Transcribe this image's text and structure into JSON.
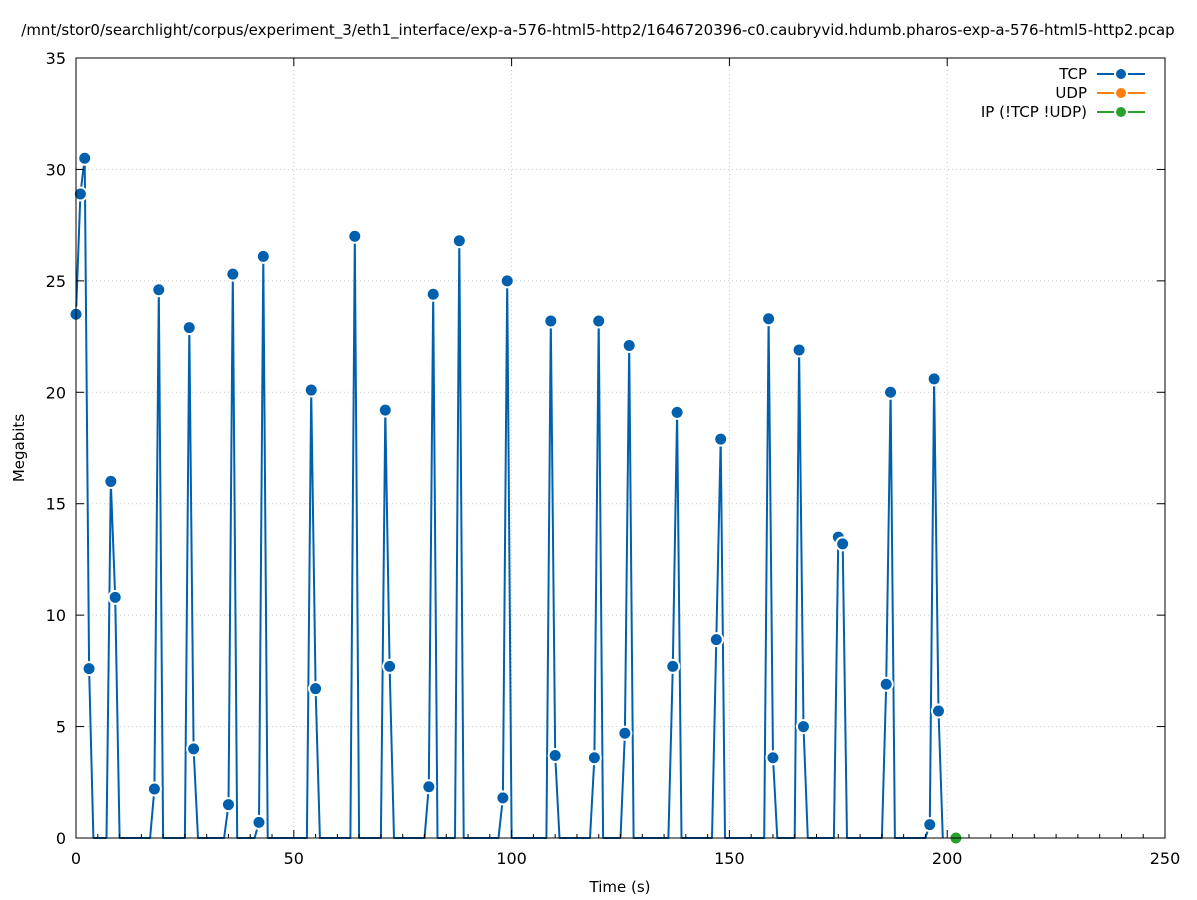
{
  "chart_data": {
    "type": "line",
    "title": "/mnt/stor0/searchlight/corpus/experiment_3/eth1_interface/exp-a-576-html5-http2/1646720396-c0.caubryvid.hdumb.pharos-exp-a-576-html5-http2.pcap",
    "xlabel": "Time (s)",
    "ylabel": "Megabits",
    "xlim": [
      0,
      250
    ],
    "ylim": [
      0,
      35
    ],
    "xticks": [
      0,
      50,
      100,
      150,
      200,
      250
    ],
    "yticks": [
      0,
      5,
      10,
      15,
      20,
      25,
      30,
      35
    ],
    "grid": true,
    "legend_position": "top-right",
    "series": [
      {
        "name": "TCP",
        "color": "#0060ad",
        "points": [
          [
            0,
            23.5
          ],
          [
            1,
            28.9
          ],
          [
            2,
            30.5
          ],
          [
            3,
            7.6
          ],
          [
            4,
            0
          ],
          [
            7,
            0
          ],
          [
            8,
            16
          ],
          [
            9,
            10.8
          ],
          [
            10,
            0
          ],
          [
            17,
            0
          ],
          [
            18,
            2.2
          ],
          [
            19,
            24.6
          ],
          [
            20,
            0
          ],
          [
            25,
            0
          ],
          [
            26,
            22.9
          ],
          [
            27,
            4
          ],
          [
            28,
            0
          ],
          [
            34,
            0
          ],
          [
            35,
            1.5
          ],
          [
            36,
            25.3
          ],
          [
            37,
            0
          ],
          [
            41,
            0
          ],
          [
            42,
            0.7
          ],
          [
            43,
            26.1
          ],
          [
            44,
            0
          ],
          [
            53,
            0
          ],
          [
            54,
            20.1
          ],
          [
            55,
            6.7
          ],
          [
            56,
            0
          ],
          [
            63,
            0
          ],
          [
            64,
            27
          ],
          [
            65,
            0
          ],
          [
            70,
            0
          ],
          [
            71,
            19.2
          ],
          [
            72,
            7.7
          ],
          [
            73,
            0
          ],
          [
            80,
            0
          ],
          [
            81,
            2.3
          ],
          [
            82,
            24.4
          ],
          [
            83,
            0
          ],
          [
            87,
            0
          ],
          [
            88,
            26.8
          ],
          [
            89,
            0
          ],
          [
            97,
            0
          ],
          [
            98,
            1.8
          ],
          [
            99,
            25
          ],
          [
            100,
            0
          ],
          [
            108,
            0
          ],
          [
            109,
            23.2
          ],
          [
            110,
            3.7
          ],
          [
            111,
            0
          ],
          [
            118,
            0
          ],
          [
            119,
            3.6
          ],
          [
            120,
            23.2
          ],
          [
            121,
            0
          ],
          [
            125,
            0
          ],
          [
            126,
            4.7
          ],
          [
            127,
            22.1
          ],
          [
            128,
            0
          ],
          [
            136,
            0
          ],
          [
            137,
            7.7
          ],
          [
            138,
            19.1
          ],
          [
            139,
            0
          ],
          [
            146,
            0
          ],
          [
            147,
            8.9
          ],
          [
            148,
            17.9
          ],
          [
            149,
            0
          ],
          [
            158,
            0
          ],
          [
            159,
            23.3
          ],
          [
            160,
            3.6
          ],
          [
            161,
            0
          ],
          [
            165,
            0
          ],
          [
            166,
            21.9
          ],
          [
            167,
            5
          ],
          [
            168,
            0
          ],
          [
            174,
            0
          ],
          [
            175,
            13.5
          ],
          [
            176,
            13.2
          ],
          [
            177,
            0
          ],
          [
            185,
            0
          ],
          [
            186,
            6.9
          ],
          [
            187,
            20
          ],
          [
            188,
            0
          ],
          [
            195,
            0
          ],
          [
            196,
            0.6
          ],
          [
            197,
            20.6
          ],
          [
            198,
            5.7
          ],
          [
            199,
            0
          ]
        ]
      },
      {
        "name": "UDP",
        "color": "#ff7f0e",
        "points": []
      },
      {
        "name": "IP (!TCP  !UDP)",
        "color": "#2ca02c",
        "points": [
          [
            202,
            0
          ]
        ]
      }
    ]
  }
}
